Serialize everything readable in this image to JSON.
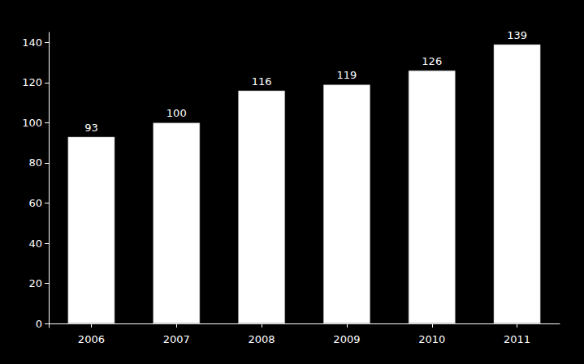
{
  "chart_data": {
    "type": "bar",
    "categories": [
      "2006",
      "2007",
      "2008",
      "2009",
      "2010",
      "2011"
    ],
    "values": [
      93,
      100,
      116,
      119,
      126,
      139
    ],
    "color": "#ffffff",
    "ylim": [
      -2,
      145
    ],
    "yticks": [
      0,
      20,
      40,
      60,
      80,
      100,
      120,
      140
    ],
    "grid": false,
    "data_labels": true
  }
}
